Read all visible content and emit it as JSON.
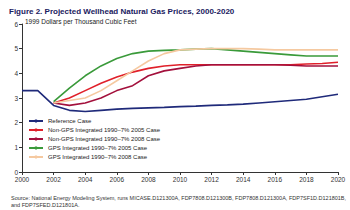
{
  "chart_data": {
    "type": "line",
    "title": "Figure 2. Projected Wellhead Natural Gas Prices, 2000-2020",
    "subtitle": "1999 Dollars per Thousand Cubic Feet",
    "source": "Source: National Energy Modeling System, runs MICASE.D121300A, FDP7808.D121300B, FDP7808.D121300A, FDP7SF1D.D121801B, and FDP7SFED.D121801A.",
    "x": [
      2000,
      2001,
      2002,
      2003,
      2004,
      2005,
      2006,
      2007,
      2008,
      2009,
      2010,
      2011,
      2012,
      2013,
      2014,
      2015,
      2016,
      2017,
      2018,
      2019,
      2020
    ],
    "series": [
      {
        "name": "Reference Case",
        "color": "#1f2a7a",
        "values": [
          3.3,
          3.3,
          2.7,
          2.5,
          2.45,
          2.5,
          2.55,
          2.58,
          2.6,
          2.62,
          2.65,
          2.67,
          2.7,
          2.72,
          2.75,
          2.8,
          2.85,
          2.9,
          2.95,
          3.05,
          3.15
        ]
      },
      {
        "name": "Non-GPS Integrated 1990–7% 2005 Case",
        "color": "#e0202a",
        "values": [
          null,
          null,
          2.8,
          3.0,
          3.3,
          3.6,
          3.85,
          4.05,
          4.2,
          4.3,
          4.35,
          4.35,
          4.35,
          4.35,
          4.35,
          4.35,
          4.35,
          4.35,
          4.38,
          4.4,
          4.45
        ]
      },
      {
        "name": "Non-GPS Integrated 1990–7% 2008 Case",
        "color": "#a3103c",
        "values": [
          null,
          null,
          2.8,
          2.7,
          2.8,
          3.0,
          3.3,
          3.5,
          3.9,
          4.1,
          4.2,
          4.3,
          4.35,
          4.35,
          4.35,
          4.35,
          4.35,
          4.33,
          4.3,
          4.3,
          4.3
        ]
      },
      {
        "name": "GPS Integrated 1990–7% 2005 Case",
        "color": "#3a9a3a",
        "values": [
          null,
          null,
          2.85,
          3.4,
          3.9,
          4.3,
          4.6,
          4.8,
          4.9,
          4.93,
          4.95,
          4.98,
          5.0,
          4.95,
          4.9,
          4.85,
          4.8,
          4.75,
          4.7,
          4.7,
          4.7
        ]
      },
      {
        "name": "GPS Integrated 1990–7% 2008 Case",
        "color": "#f5c9a0",
        "values": [
          null,
          null,
          2.8,
          2.9,
          3.0,
          3.3,
          3.7,
          4.1,
          4.5,
          4.8,
          4.95,
          4.98,
          5.0,
          5.0,
          5.0,
          4.98,
          4.95,
          4.95,
          4.95,
          4.95,
          4.95
        ]
      }
    ],
    "xlim": [
      2000,
      2020
    ],
    "xticks": [
      2000,
      2002,
      2004,
      2006,
      2008,
      2010,
      2012,
      2014,
      2016,
      2018,
      2020
    ],
    "ylim": [
      0,
      6
    ],
    "yticks": [
      0,
      1,
      2,
      3,
      4,
      5,
      6
    ],
    "grid": false,
    "legend": "lower left",
    "marker": "none"
  }
}
